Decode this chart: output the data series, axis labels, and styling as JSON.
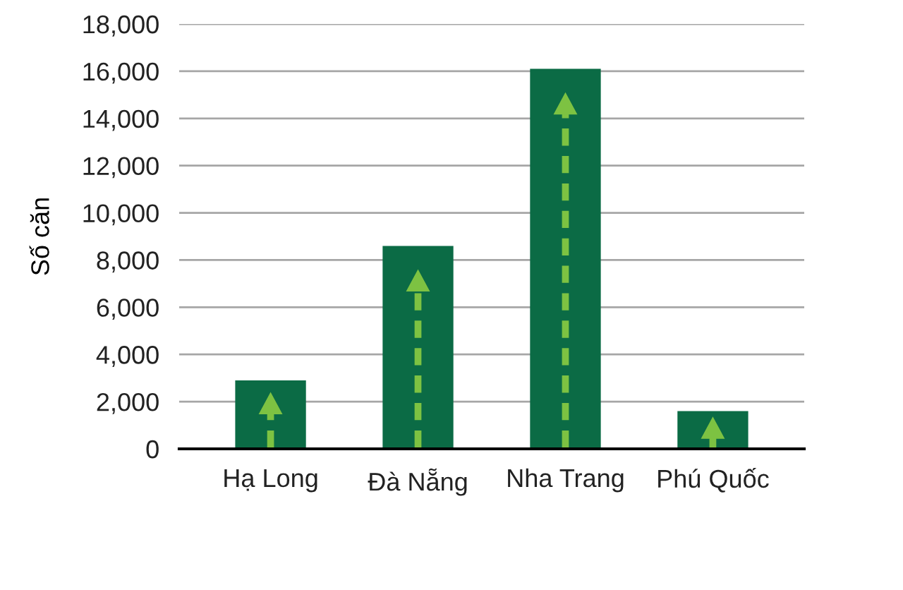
{
  "chart_data": {
    "type": "bar",
    "ylabel": "Số căn",
    "categories": [
      "Hạ Long",
      "Đà Nẵng",
      "Nha Trang",
      "Phú Quốc"
    ],
    "values": [
      2900,
      8600,
      16100,
      1600
    ],
    "color": "#0b6b45",
    "ylim": [
      0,
      18000
    ],
    "yticks": [
      {
        "value": 0,
        "label": "0"
      },
      {
        "value": 2000,
        "label": "2,000"
      },
      {
        "value": 4000,
        "label": "4,000"
      },
      {
        "value": 6000,
        "label": "6,000"
      },
      {
        "value": 8000,
        "label": "8,000"
      },
      {
        "value": 10000,
        "label": "10,000"
      },
      {
        "value": 12000,
        "label": "12,000"
      },
      {
        "value": 14000,
        "label": "14,000"
      },
      {
        "value": 16000,
        "label": "16,000"
      },
      {
        "value": 18000,
        "label": "18,000"
      }
    ],
    "grid": "y"
  }
}
